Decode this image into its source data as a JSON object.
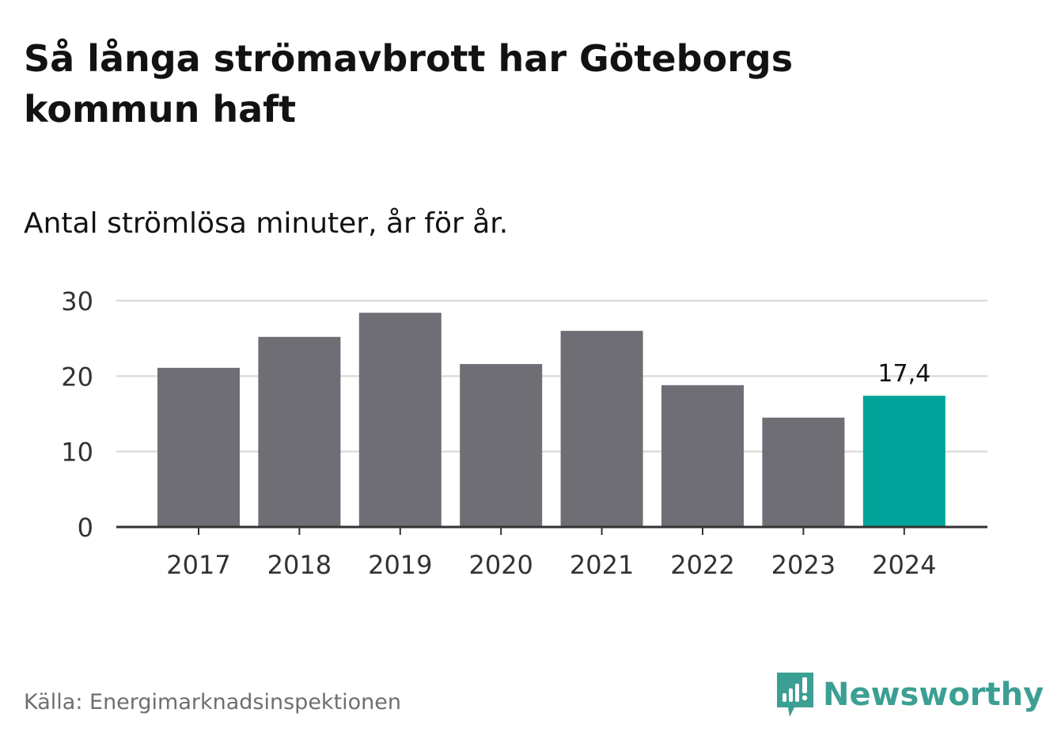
{
  "title": "Så långa strömavbrott har Göteborgs kommun haft",
  "subtitle": "Antal strömlösa minuter, år för år.",
  "source": "Källa: Energimarknadsinspektionen",
  "brand": {
    "name": "Newsworthy",
    "icon": "newsworthy-logo-icon",
    "color": "#3c9f93"
  },
  "colors": {
    "bar": "#6f6e75",
    "highlight": "#00a399",
    "grid": "#dddddd",
    "axis": "#333333"
  },
  "chart_data": {
    "type": "bar",
    "categories": [
      "2017",
      "2018",
      "2019",
      "2020",
      "2021",
      "2022",
      "2023",
      "2024"
    ],
    "values": [
      21.1,
      25.2,
      28.4,
      21.6,
      26.0,
      18.8,
      14.5,
      17.4
    ],
    "highlight_index": 7,
    "data_labels": [
      {
        "index": 7,
        "text": "17,4"
      }
    ],
    "y_ticks": [
      {
        "value": 0,
        "label": "0"
      },
      {
        "value": 10,
        "label": "10"
      },
      {
        "value": 20,
        "label": "20"
      },
      {
        "value": 30,
        "label": "30"
      }
    ],
    "ylim": [
      0,
      30
    ],
    "xlabel": "",
    "ylabel": "",
    "grid": true
  }
}
